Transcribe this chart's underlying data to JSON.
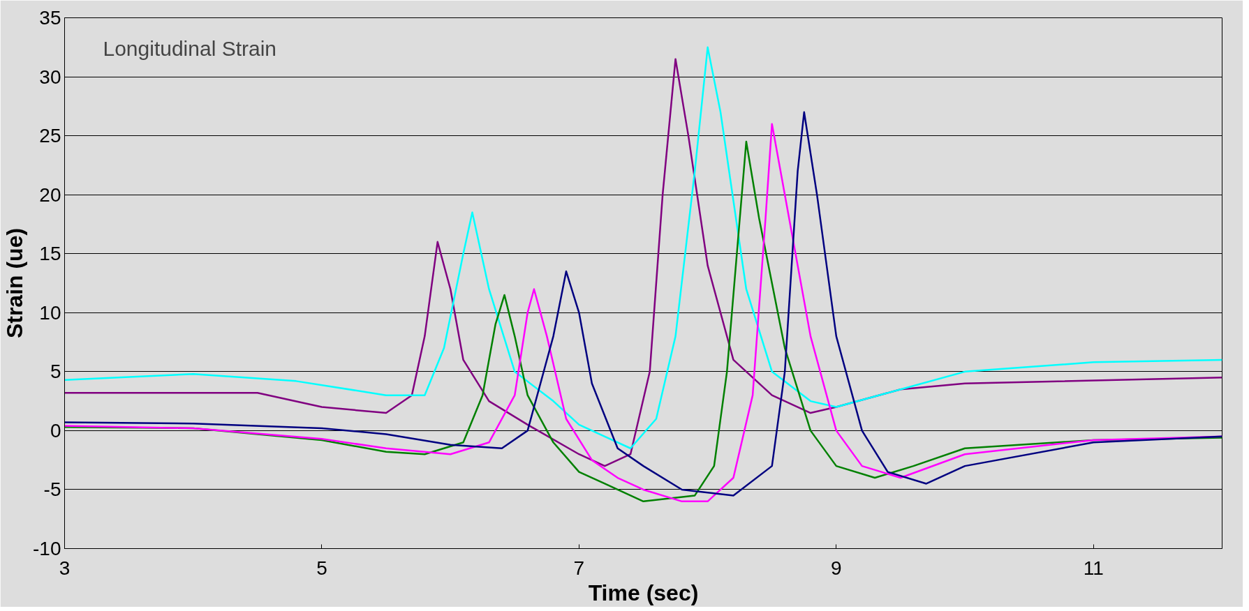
{
  "chart_data": {
    "type": "line",
    "xlabel": "Time (sec)",
    "ylabel": "Strain (ue)",
    "annotations": [
      "Longitudinal Strain"
    ],
    "xlim": [
      3,
      12
    ],
    "xticks": [
      3,
      5,
      7,
      9,
      11
    ],
    "ylim": [
      -10,
      35
    ],
    "yticks": [
      -10,
      -5,
      0,
      5,
      10,
      15,
      20,
      25,
      30,
      35
    ],
    "grid": "y",
    "marker": "none",
    "series": [
      {
        "color": "#800080",
        "x": [
          3,
          4.5,
          5,
          5.5,
          5.7,
          5.8,
          5.9,
          6.0,
          6.1,
          6.3,
          6.6,
          7.0,
          7.2,
          7.4,
          7.55,
          7.65,
          7.75,
          7.85,
          8.0,
          8.2,
          8.5,
          8.8,
          9.0,
          9.5,
          10,
          12
        ],
        "values": [
          3.2,
          3.2,
          2,
          1.5,
          3,
          8,
          16,
          12,
          6,
          2.5,
          0.5,
          -2,
          -3,
          -2,
          5,
          20,
          31.5,
          25,
          14,
          6,
          3,
          1.5,
          2,
          3.5,
          4,
          4.5
        ]
      },
      {
        "color": "#00ffff",
        "x": [
          3,
          4,
          4.8,
          5.5,
          5.8,
          5.95,
          6.1,
          6.17,
          6.3,
          6.5,
          6.8,
          7.0,
          7.2,
          7.4,
          7.6,
          7.75,
          7.9,
          8.0,
          8.1,
          8.3,
          8.5,
          8.8,
          9.0,
          9.5,
          10,
          11,
          12
        ],
        "values": [
          4.3,
          4.8,
          4.2,
          3,
          3,
          7,
          15,
          18.5,
          12,
          5,
          2.5,
          0.5,
          -0.5,
          -1.5,
          1,
          8,
          22,
          32.5,
          27,
          12,
          5,
          2.5,
          2,
          3.5,
          5,
          5.8,
          6
        ]
      },
      {
        "color": "#008000",
        "x": [
          3,
          4,
          5,
          5.5,
          5.8,
          6.1,
          6.25,
          6.35,
          6.42,
          6.5,
          6.6,
          6.8,
          7.0,
          7.2,
          7.5,
          7.9,
          8.05,
          8.15,
          8.25,
          8.3,
          8.4,
          8.6,
          8.8,
          9.0,
          9.3,
          9.6,
          10,
          11,
          12
        ],
        "values": [
          0.3,
          0.2,
          -0.8,
          -1.8,
          -2,
          -1,
          3,
          9,
          11.5,
          8,
          3,
          -1,
          -3.5,
          -4.5,
          -6,
          -5.5,
          -3,
          5,
          18,
          24.5,
          18,
          7,
          0,
          -3,
          -4,
          -3,
          -1.5,
          -0.8,
          -0.6
        ]
      },
      {
        "color": "#ff00ff",
        "x": [
          3,
          4,
          5,
          5.5,
          6.0,
          6.3,
          6.5,
          6.6,
          6.65,
          6.75,
          6.9,
          7.1,
          7.3,
          7.5,
          7.8,
          8.0,
          8.2,
          8.35,
          8.45,
          8.5,
          8.6,
          8.8,
          9.0,
          9.2,
          9.5,
          10,
          11,
          12
        ],
        "values": [
          0.4,
          0.2,
          -0.7,
          -1.5,
          -2,
          -1,
          3,
          10,
          12,
          8,
          1,
          -2.5,
          -4,
          -5,
          -6,
          -6,
          -4,
          3,
          18,
          26,
          20,
          8,
          0,
          -3,
          -4,
          -2,
          -0.8,
          -0.5
        ]
      },
      {
        "color": "#000080",
        "x": [
          3,
          4,
          5,
          5.5,
          6.0,
          6.4,
          6.6,
          6.8,
          6.9,
          7.0,
          7.1,
          7.3,
          7.5,
          7.8,
          8.2,
          8.5,
          8.6,
          8.7,
          8.75,
          8.85,
          9.0,
          9.2,
          9.4,
          9.7,
          10,
          11,
          12
        ],
        "values": [
          0.7,
          0.6,
          0.2,
          -0.3,
          -1.2,
          -1.5,
          0,
          8,
          13.5,
          10,
          4,
          -1.5,
          -3,
          -5,
          -5.5,
          -3,
          5,
          22,
          27,
          20,
          8,
          0,
          -3.5,
          -4.5,
          -3,
          -1,
          -0.5
        ]
      }
    ]
  }
}
